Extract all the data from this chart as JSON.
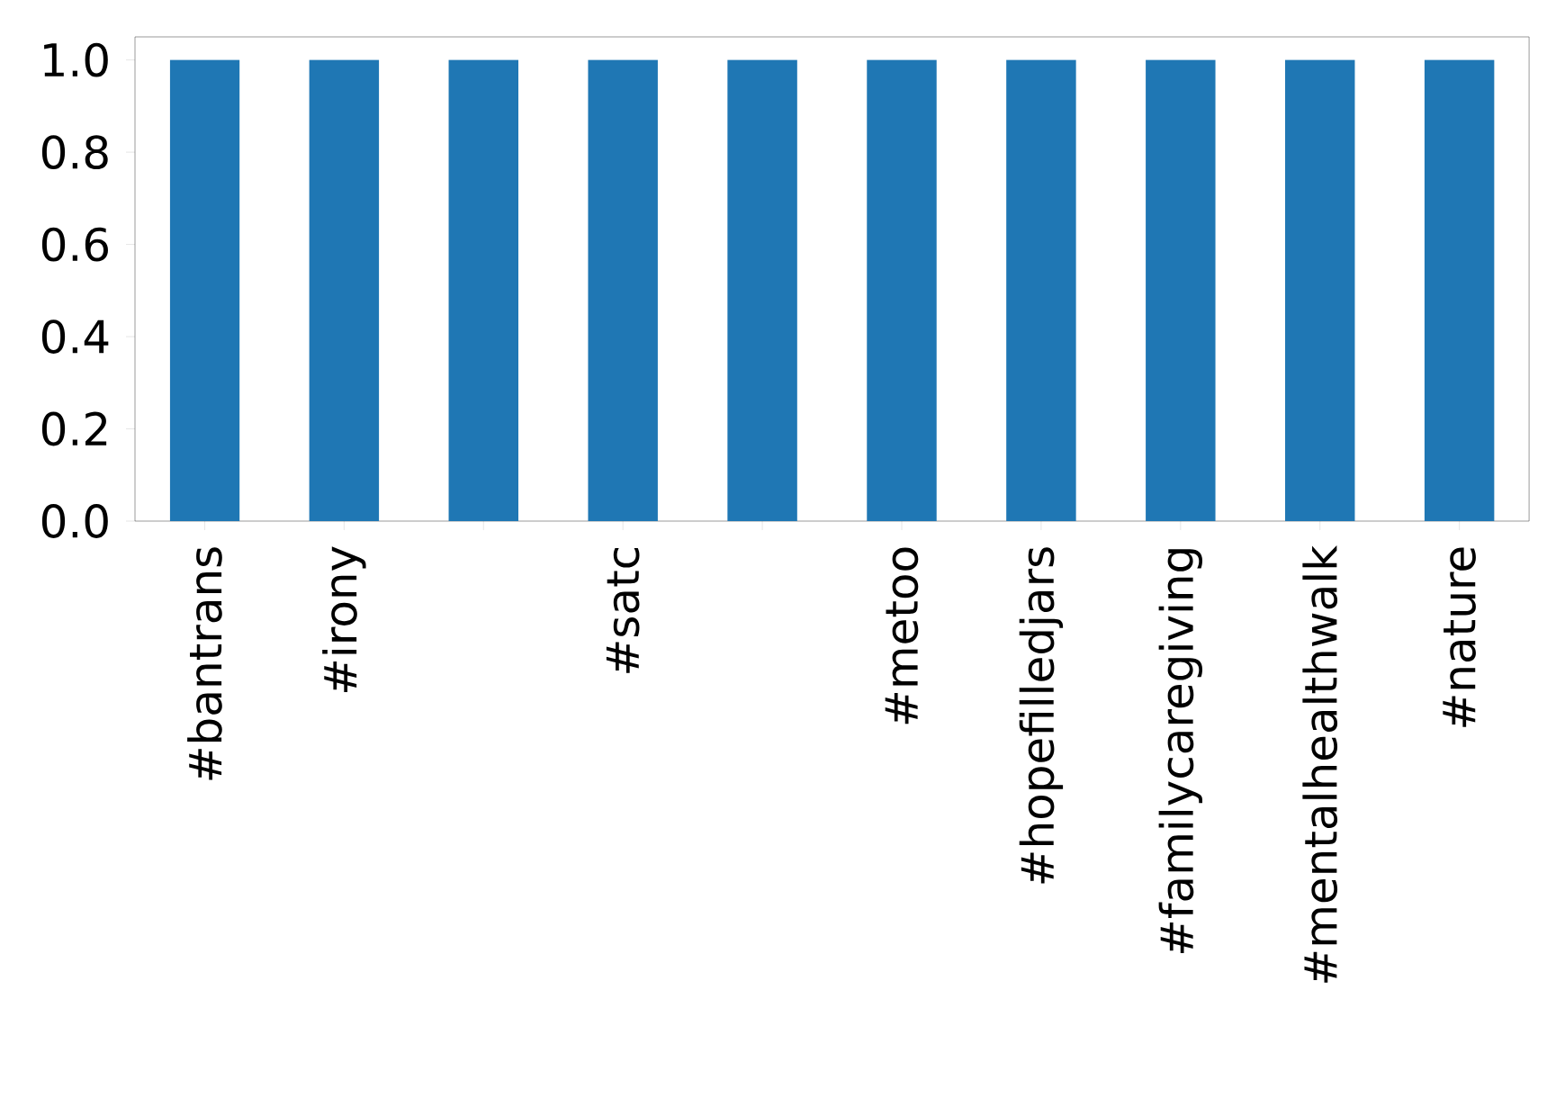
{
  "chart_data": {
    "type": "bar",
    "categories": [
      "#bantrans",
      "#irony",
      null,
      "#satc",
      null,
      "#metoo",
      "#hopefilledjars",
      "#familycaregiving",
      "#mentalhealthwalk",
      "#nature"
    ],
    "values": [
      1.0,
      1.0,
      1.0,
      1.0,
      1.0,
      1.0,
      1.0,
      1.0,
      1.0,
      1.0
    ],
    "color": "#1f77b4",
    "ylim": [
      0,
      1.05
    ],
    "yticks": [
      {
        "value": 0,
        "label": "0.0"
      },
      {
        "value": 0.2,
        "label": "0.2"
      },
      {
        "value": 0.4,
        "label": "0.4"
      },
      {
        "value": 0.6,
        "label": "0.6"
      },
      {
        "value": 0.8,
        "label": "0.8"
      },
      {
        "value": 1.0,
        "label": "1.0"
      }
    ]
  }
}
